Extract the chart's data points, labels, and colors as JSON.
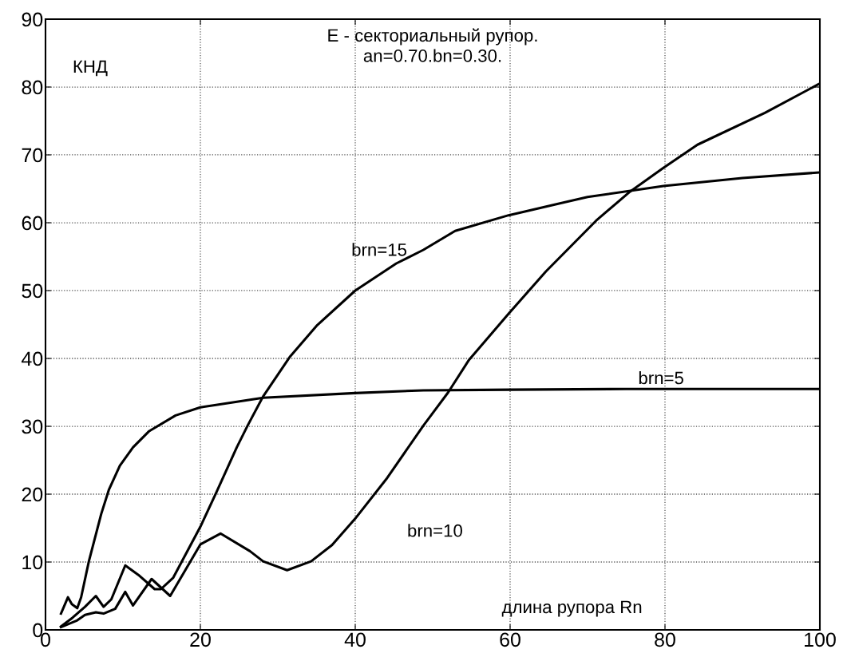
{
  "chart_data": {
    "type": "line",
    "title": "E - секториальный рупор.\nan=0.70.bn=0.30.",
    "ylabel": "КНД",
    "xlabel": "длина рупора Rn",
    "xlim": [
      0,
      100
    ],
    "ylim": [
      0,
      90
    ],
    "xticks": [
      0,
      20,
      40,
      60,
      80,
      100
    ],
    "yticks": [
      0,
      10,
      20,
      30,
      40,
      50,
      60,
      70,
      80,
      90
    ],
    "grid": true,
    "line_style": "solid",
    "marker": "none",
    "series": [
      {
        "name": "brn=5",
        "color": "#000000",
        "x": [
          2.0,
          2.9,
          3.4,
          4.1,
          4.6,
          5.6,
          7.2,
          8.2,
          9.6,
          11.3,
          13.4,
          16.8,
          20,
          28.1,
          40,
          48.8,
          60,
          75,
          100
        ],
        "values": [
          2.4,
          4.8,
          3.8,
          3.2,
          4.8,
          10.1,
          17.1,
          20.7,
          24.2,
          26.9,
          29.3,
          31.6,
          32.8,
          34.2,
          34.9,
          35.3,
          35.4,
          35.5,
          35.5
        ]
      },
      {
        "name": "brn=15",
        "color": "#000000",
        "x": [
          2.0,
          3.5,
          5.1,
          6.5,
          7.5,
          8.5,
          10.3,
          12.0,
          14.1,
          14.9,
          16.5,
          20,
          22,
          24.7,
          26.1,
          28.1,
          31.6,
          35,
          40,
          45.3,
          48.8,
          52.9,
          59.8,
          70,
          79.8,
          90,
          99.8
        ],
        "values": [
          0.5,
          1.8,
          3.4,
          5.0,
          3.4,
          4.5,
          9.5,
          8.1,
          6.0,
          6.0,
          7.7,
          15.2,
          20.1,
          26.9,
          30.1,
          34.4,
          40.3,
          44.8,
          50.0,
          54.0,
          56.0,
          58.8,
          61.1,
          63.8,
          65.4,
          66.6,
          67.4
        ]
      },
      {
        "name": "brn=10",
        "color": "#000000",
        "x": [
          2.0,
          4.1,
          5.1,
          6.5,
          7.5,
          9.0,
          10.3,
          11.3,
          13.7,
          16.1,
          20,
          22.6,
          26.4,
          28.1,
          31.2,
          34.3,
          37,
          40,
          44,
          48.8,
          52,
          54.7,
          59.8,
          64.6,
          71.1,
          75.5,
          79.8,
          84.2,
          92.9,
          99.8
        ],
        "values": [
          0.4,
          1.4,
          2.2,
          2.6,
          2.4,
          3.1,
          5.6,
          3.6,
          7.5,
          5.0,
          12.6,
          14.2,
          11.6,
          10.1,
          8.8,
          10.1,
          12.5,
          16.4,
          22.2,
          30.1,
          35.0,
          39.8,
          46.6,
          52.8,
          60.3,
          64.6,
          68.1,
          71.5,
          76.2,
          80.4
        ]
      }
    ]
  }
}
